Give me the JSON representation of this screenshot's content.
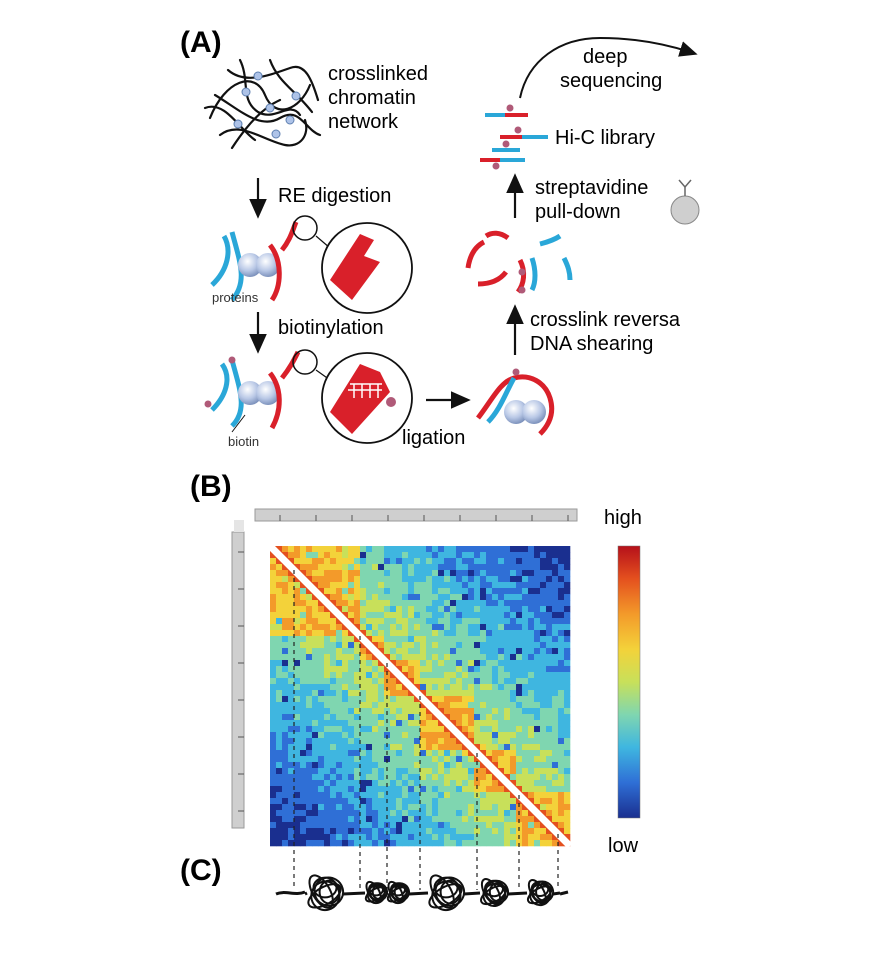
{
  "panels": {
    "a": "(A)",
    "b": "(B)",
    "c": "(C)"
  },
  "panel_a": {
    "network_line1": "crosslinked",
    "network_line2": "chromatin",
    "network_line3": "network",
    "step_digestion": "RE digestion",
    "label_proteins": "proteins",
    "step_biotinylation": "biotinylation",
    "label_biotin": "biotin",
    "step_ligation": "ligation",
    "step_reversal_line1": "crosslink reversa",
    "step_reversal_line2": "DNA shearing",
    "step_pulldown_line1": "streptavidine",
    "step_pulldown_line2": "pull-down",
    "label_library": "Hi-C library",
    "step_sequencing_line1": "deep",
    "step_sequencing_line2": "sequencing"
  },
  "panel_b": {
    "scale_high": "high",
    "scale_low": "low",
    "colormap": [
      "#1a2f8f",
      "#2f6fd6",
      "#3fb6e0",
      "#7fd6b0",
      "#c8e05a",
      "#f3d23a",
      "#f39a2a",
      "#e4501e",
      "#b5101a"
    ],
    "tad_boundaries_fraction": [
      0.0,
      0.3,
      0.39,
      0.5,
      0.69,
      0.83,
      0.96
    ]
  },
  "colors": {
    "strand_blue": "#2aa7d8",
    "strand_red": "#d9202a",
    "protein": "#b9c8e6",
    "biotin": "#b05a78"
  }
}
